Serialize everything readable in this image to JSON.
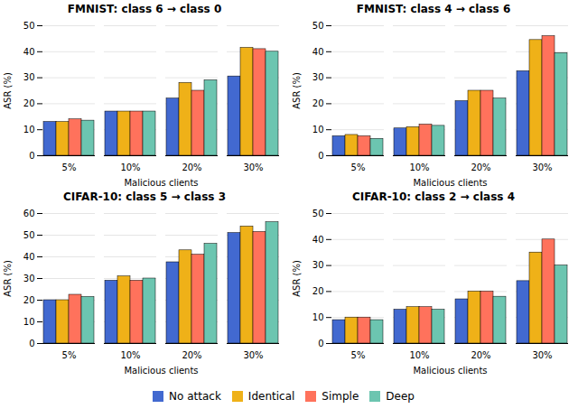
{
  "chart_data": [
    {
      "type": "bar",
      "title": "FMNIST: class 6 → class 0",
      "xlabel": "Malicious clients",
      "ylabel": "ASR (%)",
      "categories": [
        "5%",
        "10%",
        "20%",
        "30%"
      ],
      "series": [
        {
          "name": "No attack",
          "values": [
            13,
            17,
            22,
            30.5
          ]
        },
        {
          "name": "Identical",
          "values": [
            13,
            17,
            28,
            41.5
          ]
        },
        {
          "name": "Simple",
          "values": [
            14,
            17,
            25,
            41
          ]
        },
        {
          "name": "Deep",
          "values": [
            13.5,
            17,
            29,
            40
          ]
        }
      ],
      "ylim": [
        0,
        50
      ],
      "yticks": [
        0,
        10,
        20,
        30,
        40,
        50
      ],
      "grid": true,
      "legend": "bottom"
    },
    {
      "type": "bar",
      "title": "FMNIST: class 4 → class 6",
      "xlabel": "Malicious clients",
      "ylabel": "ASR (%)",
      "categories": [
        "5%",
        "10%",
        "20%",
        "30%"
      ],
      "series": [
        {
          "name": "No attack",
          "values": [
            7.5,
            10.5,
            21,
            32.5
          ]
        },
        {
          "name": "Identical",
          "values": [
            8,
            11,
            25,
            44.5
          ]
        },
        {
          "name": "Simple",
          "values": [
            7.5,
            12,
            25,
            46
          ]
        },
        {
          "name": "Deep",
          "values": [
            6.5,
            11.5,
            22,
            39.5
          ]
        }
      ],
      "ylim": [
        0,
        50
      ],
      "yticks": [
        0,
        10,
        20,
        30,
        40,
        50
      ],
      "grid": true,
      "legend": "bottom"
    },
    {
      "type": "bar",
      "title": "CIFAR-10: class 5 → class 3",
      "xlabel": "Malicious clients",
      "ylabel": "ASR (%)",
      "categories": [
        "5%",
        "10%",
        "20%",
        "30%"
      ],
      "series": [
        {
          "name": "No attack",
          "values": [
            20,
            29,
            37.5,
            51
          ]
        },
        {
          "name": "Identical",
          "values": [
            20,
            31,
            43,
            54
          ]
        },
        {
          "name": "Simple",
          "values": [
            22.5,
            29,
            41,
            51.5
          ]
        },
        {
          "name": "Deep",
          "values": [
            21.5,
            30,
            46,
            56
          ]
        }
      ],
      "ylim": [
        0,
        60
      ],
      "yticks": [
        0,
        10,
        20,
        30,
        40,
        50,
        60
      ],
      "grid": true,
      "legend": "bottom"
    },
    {
      "type": "bar",
      "title": "CIFAR-10: class 2 → class 4",
      "xlabel": "Malicious clients",
      "ylabel": "ASR (%)",
      "categories": [
        "5%",
        "10%",
        "20%",
        "30%"
      ],
      "series": [
        {
          "name": "No attack",
          "values": [
            9,
            13,
            17,
            24
          ]
        },
        {
          "name": "Identical",
          "values": [
            10,
            14,
            20,
            35
          ]
        },
        {
          "name": "Simple",
          "values": [
            10,
            14,
            20,
            40
          ]
        },
        {
          "name": "Deep",
          "values": [
            9,
            13,
            18,
            30
          ]
        }
      ],
      "ylim": [
        0,
        50
      ],
      "yticks": [
        0,
        10,
        20,
        30,
        40,
        50
      ],
      "grid": true,
      "legend": "bottom"
    }
  ]
}
